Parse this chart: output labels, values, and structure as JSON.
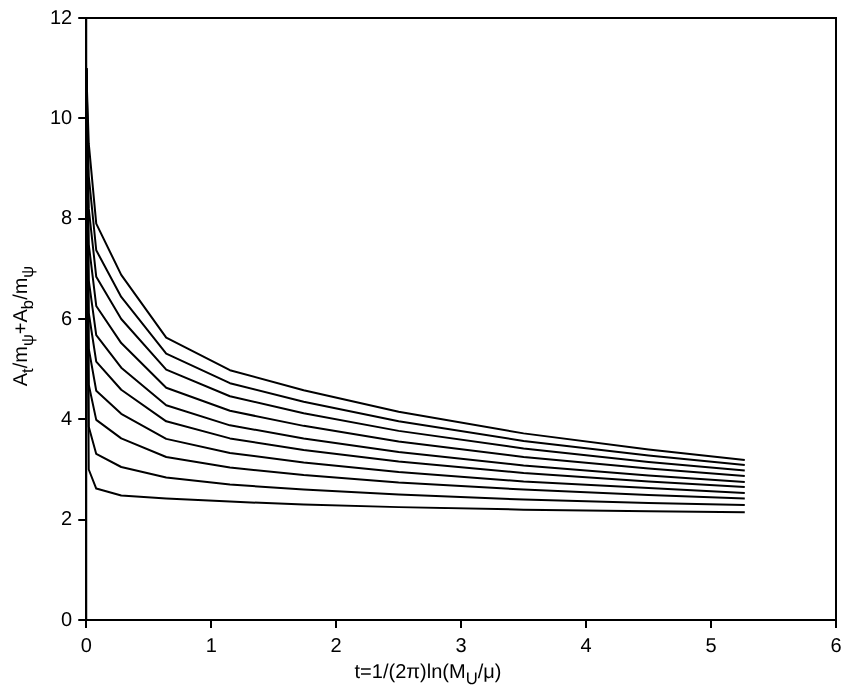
{
  "chart_data": {
    "type": "line",
    "xlabel": "t=1/(2π)ln(M$_{U}$/μ)",
    "ylabel": "A$_{t}$/m$_{ψ}$+A$_{b}$/m$_{ψ}$",
    "x": [
      0,
      0.02,
      0.08,
      0.28,
      0.64,
      1.15,
      1.74,
      2.5,
      3.5,
      4.5,
      5.27
    ],
    "series": [
      {
        "color": "#000000",
        "values": [
          11,
          9.5,
          7.9,
          6.88,
          5.63,
          4.98,
          4.58,
          4.15,
          3.72,
          3.4,
          3.19
        ]
      },
      {
        "color": "#000000",
        "values": [
          11,
          8.85,
          7.37,
          6.44,
          5.31,
          4.72,
          4.35,
          3.96,
          3.57,
          3.28,
          3.09
        ]
      },
      {
        "color": "#000000",
        "values": [
          11,
          8.2,
          6.84,
          6.0,
          4.99,
          4.46,
          4.12,
          3.77,
          3.42,
          3.15,
          2.98
        ]
      },
      {
        "color": "#000000",
        "values": [
          11,
          7.49,
          6.26,
          5.52,
          4.63,
          4.17,
          3.87,
          3.56,
          3.25,
          3.02,
          2.87
        ]
      },
      {
        "color": "#000000",
        "values": [
          11,
          6.77,
          5.68,
          5.03,
          4.28,
          3.88,
          3.62,
          3.35,
          3.08,
          2.88,
          2.75
        ]
      },
      {
        "color": "#000000",
        "values": [
          11,
          6.12,
          5.15,
          4.59,
          3.96,
          3.62,
          3.39,
          3.16,
          2.93,
          2.76,
          2.65
        ]
      },
      {
        "color": "#000000",
        "values": [
          11,
          5.41,
          4.57,
          4.11,
          3.61,
          3.33,
          3.14,
          2.95,
          2.76,
          2.63,
          2.53
        ]
      },
      {
        "color": "#000000",
        "values": [
          11,
          4.69,
          3.99,
          3.62,
          3.25,
          3.04,
          2.89,
          2.74,
          2.6,
          2.49,
          2.42
        ]
      },
      {
        "color": "#000000",
        "values": [
          11,
          3.85,
          3.31,
          3.05,
          2.84,
          2.7,
          2.6,
          2.5,
          2.4,
          2.33,
          2.29
        ]
      },
      {
        "color": "#000000",
        "values": [
          11,
          3.0,
          2.62,
          2.48,
          2.42,
          2.36,
          2.3,
          2.25,
          2.2,
          2.17,
          2.15
        ]
      }
    ],
    "xlim": [
      0,
      6
    ],
    "xticks": [
      0,
      1,
      2,
      3,
      4,
      5,
      6
    ],
    "ylim": [
      0,
      12
    ],
    "yticks": [
      0,
      2,
      4,
      6,
      8,
      10,
      12
    ],
    "grid": false,
    "legend": false,
    "marker": "none",
    "line_style": "solid"
  }
}
